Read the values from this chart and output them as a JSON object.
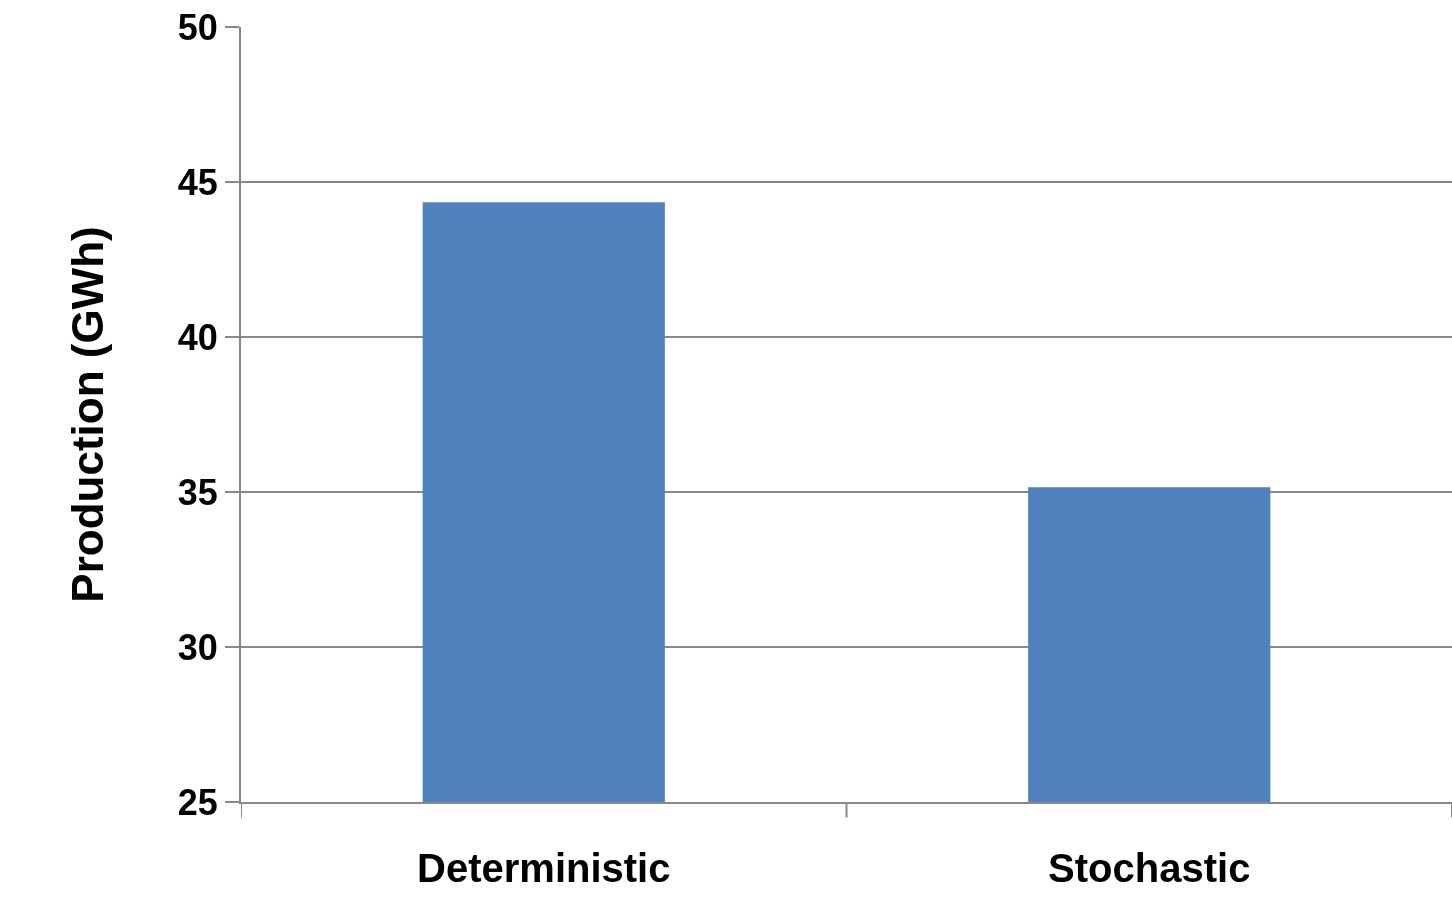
{
  "chart_data": {
    "type": "bar",
    "ylabel": "Production (GWh)",
    "categories": [
      "Deterministic",
      "Stochastic"
    ],
    "values": [
      44.35,
      35.15
    ],
    "color": "#4f81bd",
    "ylim": [
      25,
      50
    ],
    "yticks": [
      25,
      30,
      35,
      40,
      45,
      50
    ],
    "grid": "y"
  }
}
